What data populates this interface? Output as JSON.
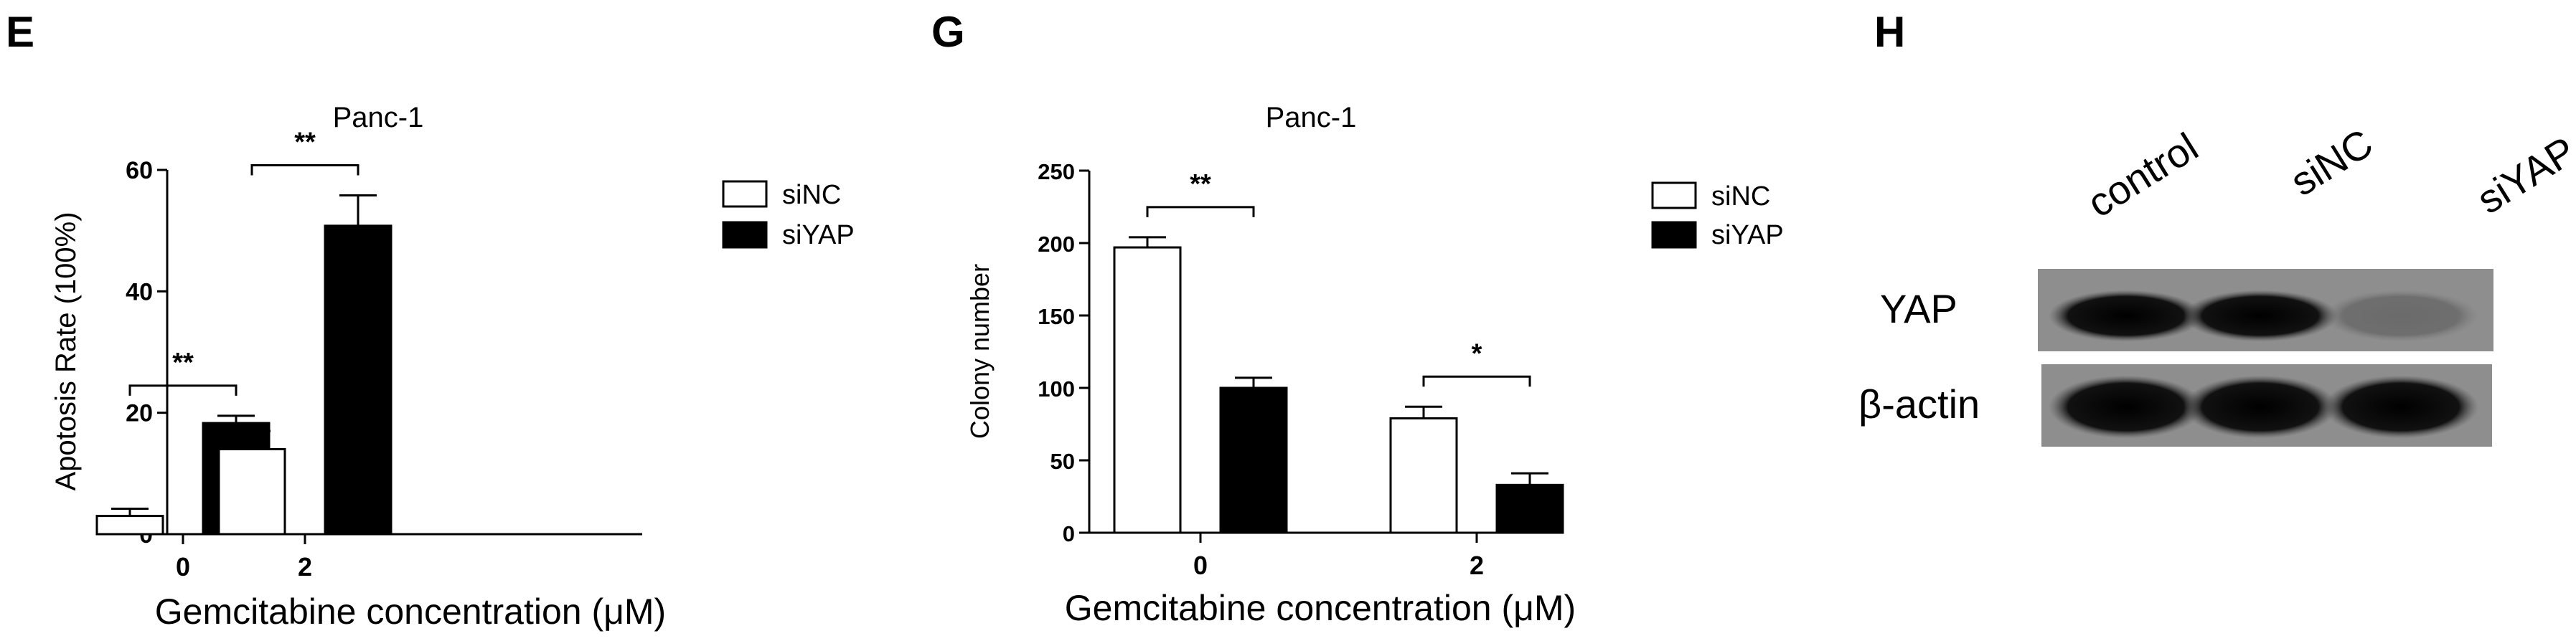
{
  "chart_data": [
    {
      "panel": "E",
      "type": "bar",
      "title": "Panc-1",
      "xlabel": "Gemcitabine concentration (μM)",
      "ylabel": "Apotosis Rate (100%)",
      "ylim": [
        0,
        60
      ],
      "yticks": [
        "0",
        "20",
        "40",
        "60"
      ],
      "categories": [
        "0",
        "2"
      ],
      "series": [
        {
          "name": "siNC",
          "values": [
            3,
            14
          ],
          "errors": [
            1.2,
            3
          ],
          "color": "#ffffff"
        },
        {
          "name": "siYAP",
          "values": [
            18.3,
            50.8
          ],
          "errors": [
            1.2,
            5
          ],
          "color": "#000000"
        }
      ],
      "significance": [
        "**",
        "**"
      ],
      "legend": "top-right",
      "grid": false
    },
    {
      "panel": "G",
      "type": "bar",
      "title": "Panc-1",
      "xlabel": "Gemcitabine concentration (μM)",
      "ylabel": "Colony number",
      "ylim": [
        0,
        250
      ],
      "yticks": [
        "0",
        "50",
        "100",
        "150",
        "200",
        "250"
      ],
      "categories": [
        "0",
        "2"
      ],
      "series": [
        {
          "name": "siNC",
          "values": [
            197,
            79
          ],
          "errors": [
            7,
            8
          ],
          "color": "#ffffff"
        },
        {
          "name": "siYAP",
          "values": [
            100,
            33
          ],
          "errors": [
            7,
            8
          ],
          "color": "#000000"
        }
      ],
      "significance": [
        "**",
        "*"
      ],
      "legend": "top-right",
      "grid": false
    }
  ],
  "blot": {
    "panel": "H",
    "lanes": [
      "control",
      "siNC",
      "siYAP"
    ],
    "rows": [
      {
        "label": "YAP",
        "intensity": [
          1,
          1,
          0.25
        ]
      },
      {
        "label": "β-actin",
        "intensity": [
          1,
          1,
          1
        ]
      }
    ]
  }
}
